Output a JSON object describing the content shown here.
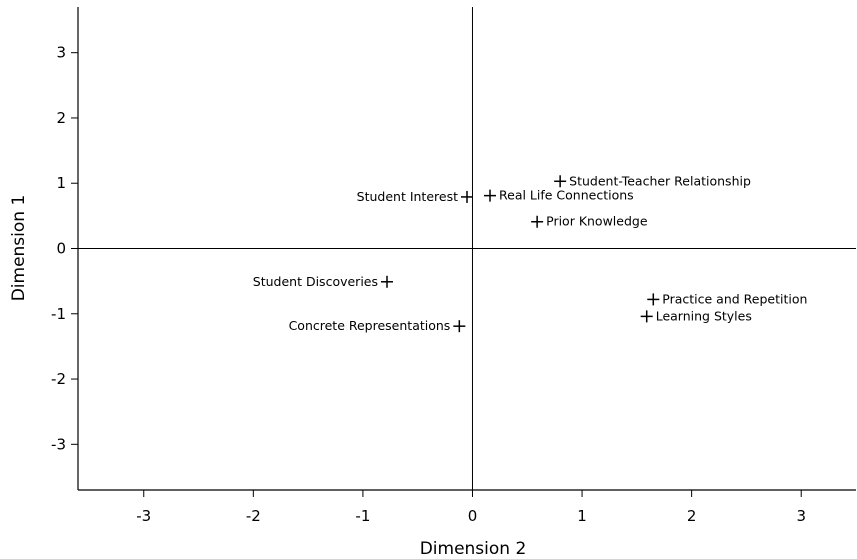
{
  "chart_data": {
    "type": "scatter",
    "title": "",
    "xlabel": "Dimension 2",
    "ylabel": "Dimension 1",
    "xlim": [
      -3.6,
      3.5
    ],
    "ylim": [
      -3.7,
      3.7
    ],
    "xticks": [
      -3,
      -2,
      -1,
      0,
      1,
      2,
      3
    ],
    "yticks": [
      3,
      2,
      1,
      0,
      -1,
      -2,
      -3
    ],
    "reference_lines": {
      "x": 0,
      "y": 0
    },
    "grid": false,
    "marker": "cross",
    "points": [
      {
        "label": "Student-Teacher Relationship",
        "x": 0.8,
        "y": 1.03,
        "label_side": "right"
      },
      {
        "label": "Student Interest",
        "x": -0.05,
        "y": 0.79,
        "label_side": "left"
      },
      {
        "label": "Real Life Connections",
        "x": 0.16,
        "y": 0.81,
        "label_side": "right"
      },
      {
        "label": "Prior Knowledge",
        "x": 0.59,
        "y": 0.41,
        "label_side": "right"
      },
      {
        "label": "Student Discoveries",
        "x": -0.78,
        "y": -0.51,
        "label_side": "left"
      },
      {
        "label": "Concrete Representations",
        "x": -0.12,
        "y": -1.19,
        "label_side": "left"
      },
      {
        "label": "Practice and Repetition",
        "x": 1.65,
        "y": -0.78,
        "label_side": "right"
      },
      {
        "label": "Learning Styles",
        "x": 1.59,
        "y": -1.04,
        "label_side": "right"
      }
    ]
  }
}
